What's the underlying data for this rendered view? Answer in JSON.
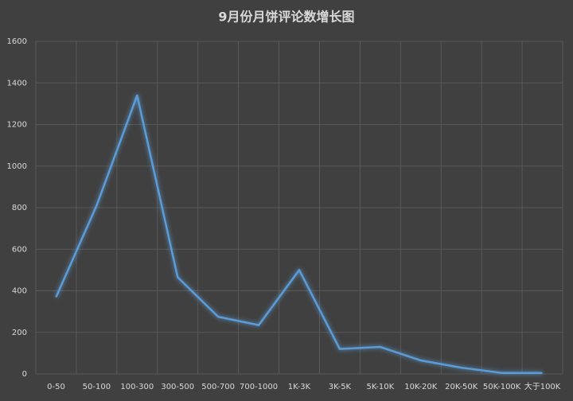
{
  "chart_data": {
    "type": "line",
    "title": "9月份月饼评论数增长图",
    "categories": [
      "0-50",
      "50-100",
      "100-300",
      "300-500",
      "500-700",
      "700-1000",
      "1K-3K",
      "3K-5K",
      "5K-10K",
      "10K-20K",
      "20K-50K",
      "50K-100K",
      "大于100K"
    ],
    "values": [
      370,
      810,
      1340,
      465,
      275,
      235,
      500,
      120,
      130,
      65,
      30,
      5,
      5
    ],
    "color": "#5b9bd5",
    "ylim": [
      0,
      1600
    ],
    "yticks": [
      0,
      200,
      400,
      600,
      800,
      1000,
      1200,
      1400,
      1600
    ],
    "grid": true
  }
}
